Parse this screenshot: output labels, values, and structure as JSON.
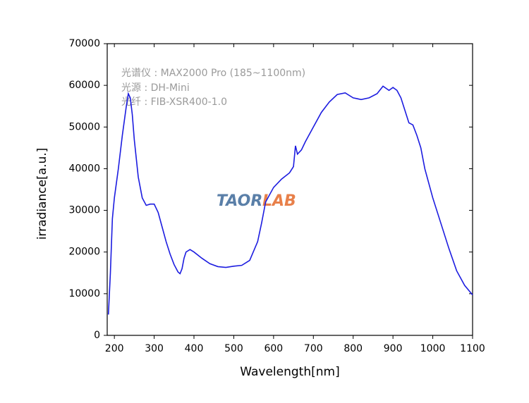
{
  "chart_data": {
    "type": "line",
    "xlabel": "Wavelength[nm]",
    "ylabel": "irradiance[a.u.]",
    "annotations": [
      "光谱仪 : MAX2000 Pro (185~1100nm)",
      "光源 : DH-Mini",
      "光纤 : FIB-XSR400-1.0"
    ],
    "watermark": [
      "TAOR",
      "LAB"
    ],
    "color": "#1c1ce0",
    "x": [
      185,
      190,
      195,
      200,
      210,
      220,
      230,
      235,
      240,
      245,
      250,
      260,
      270,
      280,
      290,
      300,
      310,
      320,
      330,
      340,
      350,
      360,
      365,
      370,
      375,
      380,
      390,
      400,
      420,
      440,
      460,
      480,
      500,
      520,
      540,
      560,
      570,
      580,
      600,
      620,
      640,
      650,
      655,
      660,
      670,
      680,
      700,
      720,
      740,
      760,
      780,
      800,
      820,
      840,
      860,
      875,
      890,
      900,
      910,
      920,
      930,
      940,
      950,
      960,
      970,
      980,
      1000,
      1020,
      1040,
      1060,
      1080,
      1100
    ],
    "values": [
      5000,
      15000,
      28000,
      33000,
      40000,
      48000,
      55000,
      58000,
      57000,
      53000,
      47000,
      38000,
      33000,
      31200,
      31500,
      31500,
      29500,
      26000,
      22500,
      19500,
      17000,
      15200,
      14800,
      16000,
      18500,
      20000,
      20600,
      20000,
      18500,
      17200,
      16500,
      16300,
      16600,
      16800,
      18000,
      22500,
      27000,
      32000,
      35500,
      37500,
      39000,
      40500,
      45500,
      43500,
      44500,
      46500,
      50000,
      53500,
      56000,
      57800,
      58200,
      57000,
      56600,
      57000,
      58000,
      59800,
      58800,
      59500,
      58800,
      57000,
      54000,
      51000,
      50500,
      48000,
      45000,
      40000,
      33000,
      27000,
      21000,
      15500,
      12000,
      9700
    ],
    "xlim": [
      182,
      1100
    ],
    "ylim": [
      0,
      70000
    ],
    "xticks": [
      200,
      300,
      400,
      500,
      600,
      700,
      800,
      900,
      1000,
      1100
    ],
    "yticks": [
      0,
      10000,
      20000,
      30000,
      40000,
      50000,
      60000,
      70000
    ]
  }
}
